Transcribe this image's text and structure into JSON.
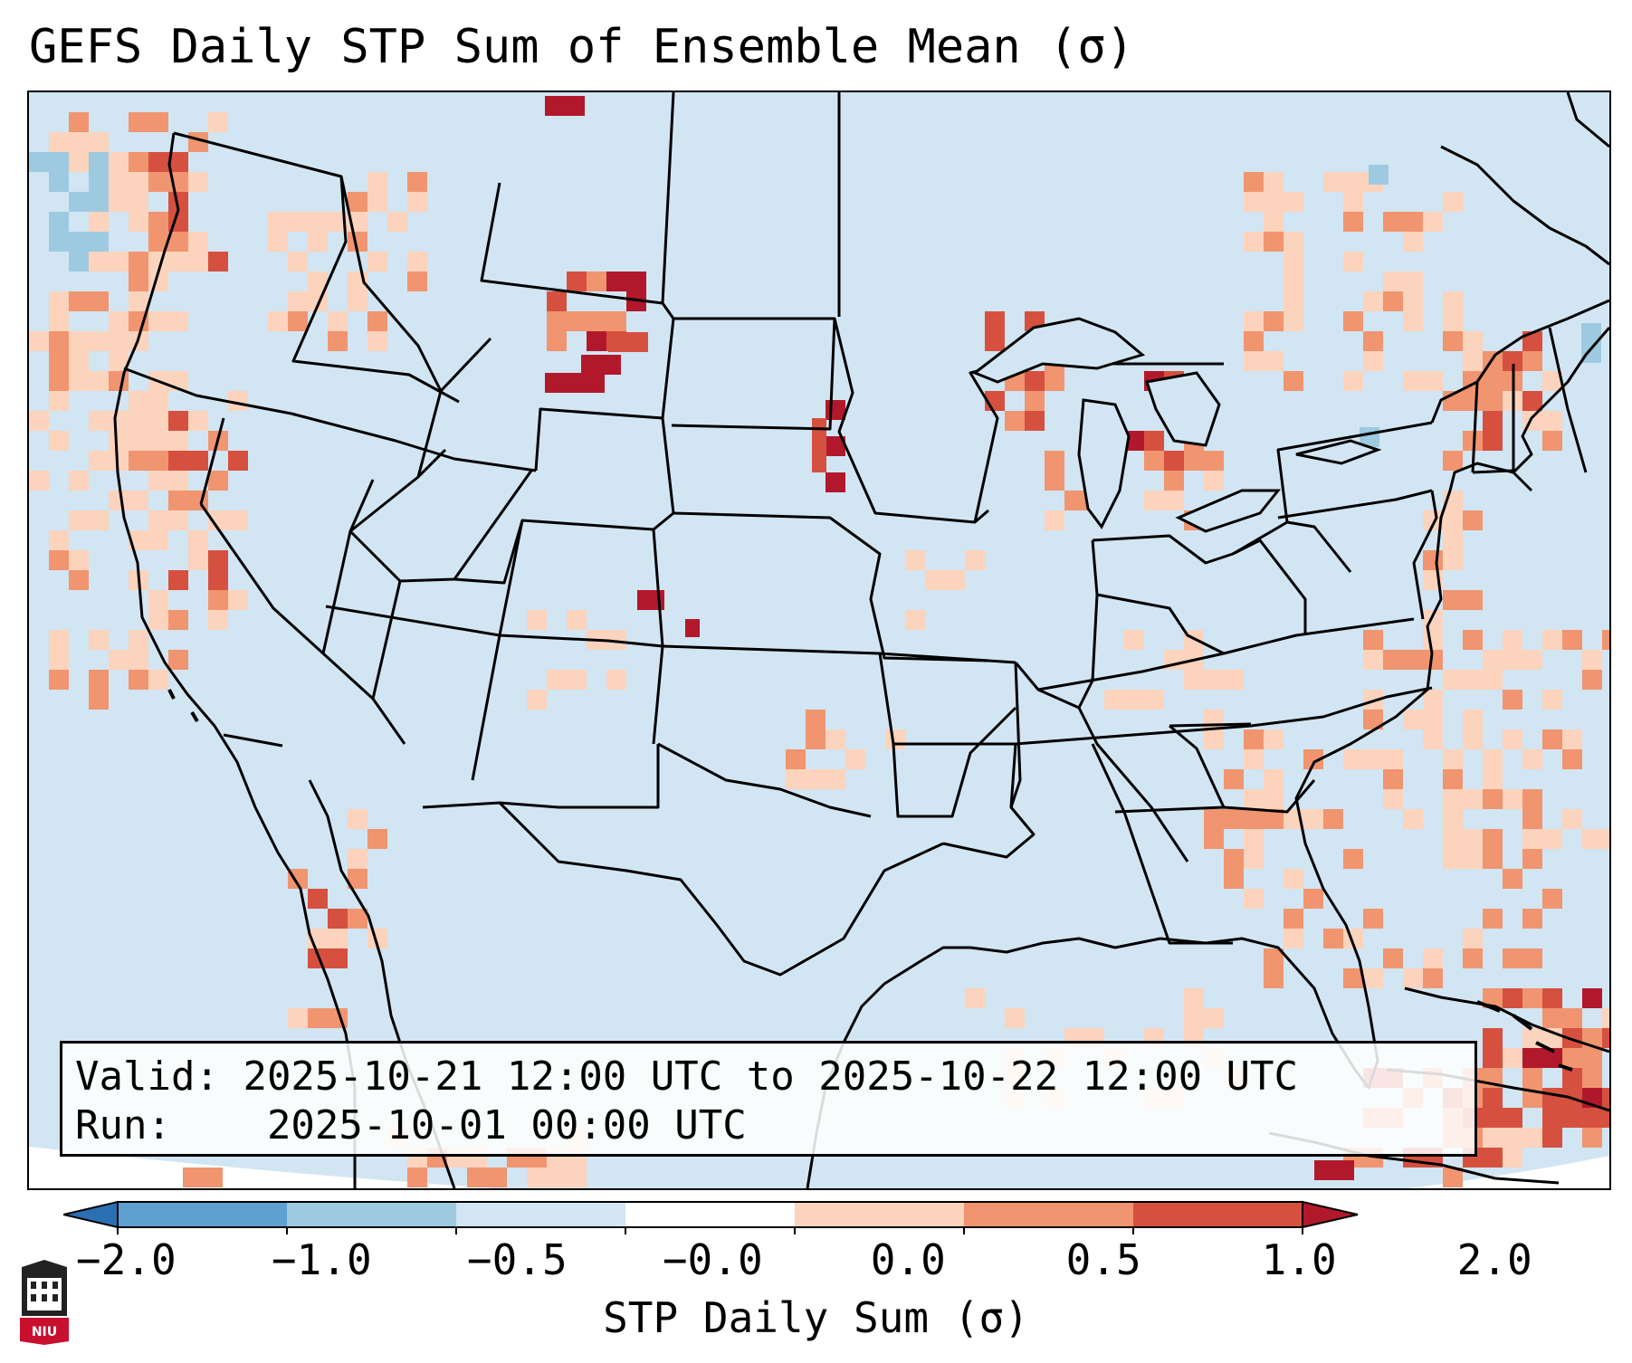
{
  "title": "GEFS Daily STP Sum of Ensemble Mean (σ)",
  "info": {
    "valid_label": "Valid:",
    "valid_value": "2025-10-21 12:00 UTC to 2025-10-22 12:00 UTC",
    "run_label": "Run:",
    "run_value": "2025-10-01 00:00 UTC"
  },
  "colorbar": {
    "label": "STP Daily Sum (σ)",
    "ticks": [
      "−2.0",
      "−1.0",
      "−0.5",
      "−0.0",
      "0.0",
      "0.5",
      "1.0",
      "2.0"
    ],
    "colors": [
      "#2b6fb3",
      "#5fa0d0",
      "#9ecae1",
      "#d2e5f2",
      "#ffffff",
      "#fcd3bc",
      "#f0956f",
      "#d6503f",
      "#b2182b"
    ]
  },
  "map": {
    "background_color": "#d2e5f2",
    "positive_colors": {
      "low": "#fcd3bc",
      "mid": "#f0956f",
      "high": "#d6503f",
      "extreme": "#b2182b"
    },
    "negative_color": "#9ecae1"
  },
  "logo": {
    "text": "NIU"
  }
}
